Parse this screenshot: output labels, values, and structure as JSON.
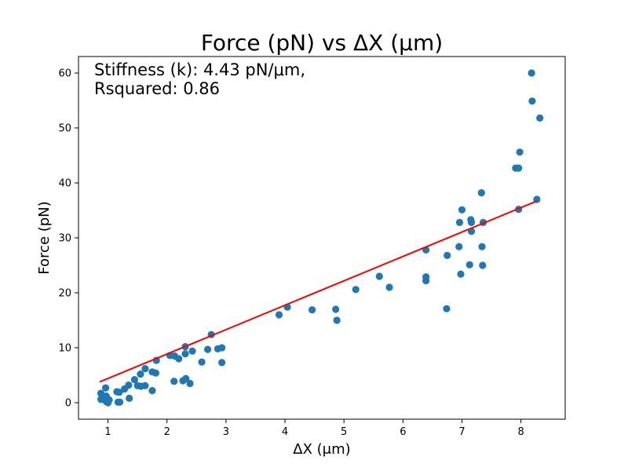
{
  "chart_data": {
    "type": "scatter",
    "title": "Force (pN) vs ΔX (μm)",
    "xlabel": "ΔX (μm)",
    "ylabel": "Force (pN)",
    "annotation_lines": [
      "Stiffness (k): 4.43 pN/μm,",
      "Rsquared: 0.86"
    ],
    "xlim": [
      0.5,
      8.75
    ],
    "ylim": [
      -3.0,
      63.0
    ],
    "xticks": [
      1,
      2,
      3,
      4,
      5,
      6,
      7,
      8
    ],
    "yticks": [
      0,
      10,
      20,
      30,
      40,
      50,
      60
    ],
    "grid": false,
    "colors": {
      "points": "#1f77b4",
      "fit": "#ff0000"
    },
    "series": [
      {
        "type": "scatter",
        "points": [
          [
            0.88,
            1.7
          ],
          [
            0.88,
            0.6
          ],
          [
            0.96,
            2.7
          ],
          [
            0.97,
            1.2
          ],
          [
            0.97,
            0.2
          ],
          [
            1.0,
            0.0
          ],
          [
            1.02,
            0.5
          ],
          [
            1.15,
            2.0
          ],
          [
            1.17,
            0.1
          ],
          [
            1.19,
            1.9
          ],
          [
            1.2,
            0.1
          ],
          [
            1.28,
            2.5
          ],
          [
            1.35,
            3.2
          ],
          [
            1.36,
            0.8
          ],
          [
            1.45,
            4.2
          ],
          [
            1.5,
            3.1
          ],
          [
            1.55,
            5.2
          ],
          [
            1.56,
            3.0
          ],
          [
            1.63,
            6.2
          ],
          [
            1.63,
            3.1
          ],
          [
            1.75,
            2.2
          ],
          [
            1.75,
            5.6
          ],
          [
            1.81,
            5.4
          ],
          [
            1.82,
            7.7
          ],
          [
            2.05,
            8.6
          ],
          [
            2.12,
            3.9
          ],
          [
            2.13,
            8.5
          ],
          [
            2.2,
            8.0
          ],
          [
            2.27,
            4.0
          ],
          [
            2.31,
            10.2
          ],
          [
            2.31,
            8.9
          ],
          [
            2.32,
            4.4
          ],
          [
            2.39,
            3.5
          ],
          [
            2.43,
            9.4
          ],
          [
            2.59,
            7.4
          ],
          [
            2.69,
            9.7
          ],
          [
            2.75,
            12.4
          ],
          [
            2.86,
            9.8
          ],
          [
            2.93,
            10.0
          ],
          [
            2.93,
            7.3
          ],
          [
            3.9,
            16.0
          ],
          [
            4.04,
            17.4
          ],
          [
            4.46,
            16.9
          ],
          [
            4.86,
            17.0
          ],
          [
            4.88,
            15.0
          ],
          [
            5.2,
            20.6
          ],
          [
            5.6,
            23.0
          ],
          [
            5.77,
            21.0
          ],
          [
            6.39,
            27.8
          ],
          [
            6.39,
            22.9
          ],
          [
            6.39,
            22.2
          ],
          [
            6.74,
            17.1
          ],
          [
            6.75,
            26.8
          ],
          [
            6.95,
            28.4
          ],
          [
            6.96,
            32.8
          ],
          [
            6.98,
            23.4
          ],
          [
            7.0,
            35.1
          ],
          [
            7.13,
            25.1
          ],
          [
            7.15,
            33.3
          ],
          [
            7.16,
            32.8
          ],
          [
            7.16,
            31.2
          ],
          [
            7.33,
            38.2
          ],
          [
            7.34,
            28.4
          ],
          [
            7.35,
            25.0
          ],
          [
            7.36,
            32.8
          ],
          [
            7.91,
            42.7
          ],
          [
            7.96,
            42.7
          ],
          [
            7.96,
            35.2
          ],
          [
            7.98,
            45.6
          ],
          [
            8.18,
            60.0
          ],
          [
            8.19,
            54.9
          ],
          [
            8.27,
            37.0
          ],
          [
            8.32,
            51.8
          ]
        ]
      },
      {
        "type": "line",
        "points": [
          [
            0.86,
            3.8
          ],
          [
            8.27,
            36.7
          ]
        ]
      }
    ]
  }
}
